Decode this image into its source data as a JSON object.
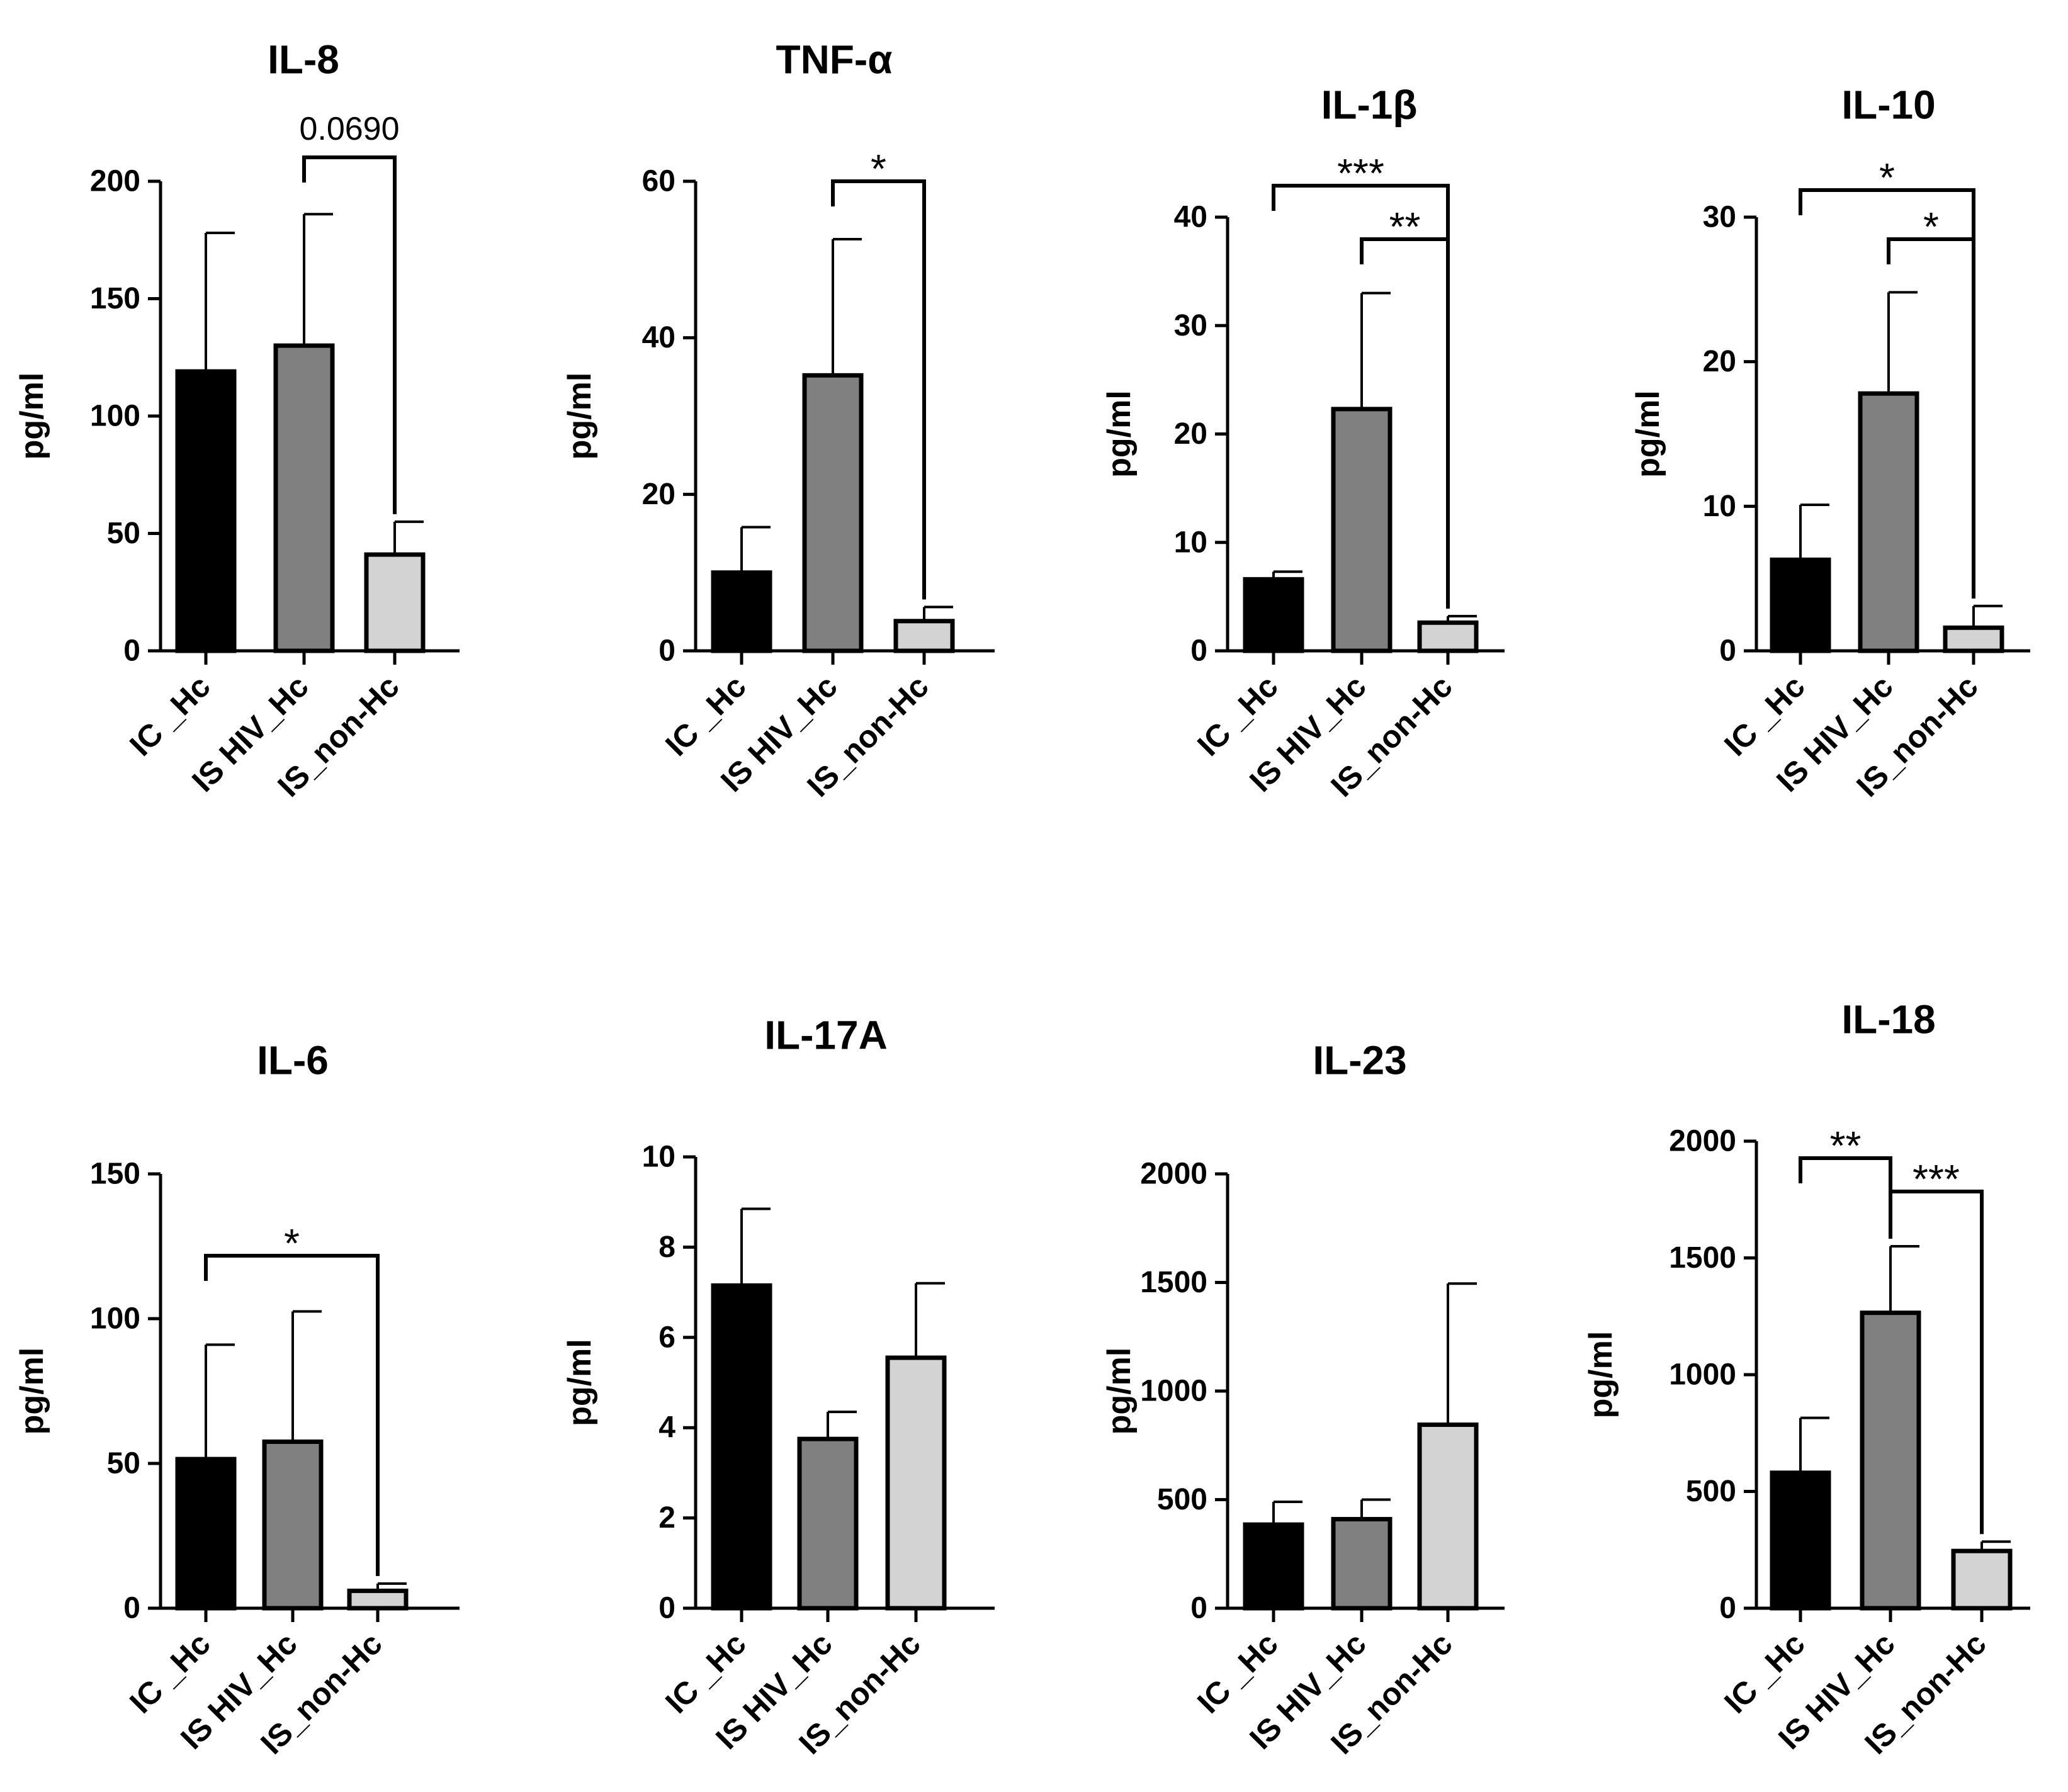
{
  "chart_data": [
    {
      "type": "bar",
      "title": "IL-8",
      "ylabel": "pg/ml",
      "categories": [
        "IC _Hc",
        "IS HIV_Hc",
        "IS_non-Hc"
      ],
      "values": [
        119,
        130,
        41
      ],
      "errors": [
        59,
        56,
        14
      ],
      "ylim": [
        0,
        200
      ],
      "yticks": [
        "0",
        "50",
        "100",
        "150",
        "200"
      ],
      "comparisons": [
        {
          "from": 1,
          "to": 2,
          "label": "0.0690"
        }
      ],
      "colors": [
        "#000000",
        "#808080",
        "#d3d3d3"
      ]
    },
    {
      "type": "bar",
      "title": "TNF-α",
      "ylabel": "pg/ml",
      "categories": [
        "IC _Hc",
        "IS HIV_Hc",
        "IS_non-Hc"
      ],
      "values": [
        10,
        35.2,
        3.8
      ],
      "errors": [
        5.8,
        17.4,
        1.8
      ],
      "ylim": [
        0,
        60
      ],
      "yticks": [
        "0",
        "20",
        "40",
        "60"
      ],
      "comparisons": [
        {
          "from": 1,
          "to": 2,
          "label": "*"
        }
      ],
      "colors": [
        "#000000",
        "#808080",
        "#d3d3d3"
      ]
    },
    {
      "type": "bar",
      "title": "IL-1β",
      "ylabel": "pg/ml",
      "categories": [
        "IC _Hc",
        "IS HIV_Hc",
        "IS_non-Hc"
      ],
      "values": [
        6.6,
        22.3,
        2.6
      ],
      "errors": [
        0.7,
        10.7,
        0.6
      ],
      "ylim": [
        0,
        40
      ],
      "yticks": [
        "0",
        "10",
        "20",
        "30",
        "40"
      ],
      "comparisons": [
        {
          "from": 0,
          "to": 2,
          "label": "***"
        },
        {
          "from": 1,
          "to": 2,
          "label": "**"
        }
      ],
      "colors": [
        "#000000",
        "#808080",
        "#d3d3d3"
      ]
    },
    {
      "type": "bar",
      "title": "IL-10",
      "ylabel": "pg/ml",
      "categories": [
        "IC _Hc",
        "IS HIV_Hc",
        "IS_non-Hc"
      ],
      "values": [
        6.3,
        17.8,
        1.6
      ],
      "errors": [
        3.8,
        7,
        1.5
      ],
      "ylim": [
        0,
        30
      ],
      "yticks": [
        "0",
        "10",
        "20",
        "30"
      ],
      "comparisons": [
        {
          "from": 0,
          "to": 2,
          "label": "*"
        },
        {
          "from": 1,
          "to": 2,
          "label": "*"
        }
      ],
      "colors": [
        "#000000",
        "#808080",
        "#d3d3d3"
      ]
    },
    {
      "type": "bar",
      "title": "IL-6",
      "ylabel": "pg/ml",
      "categories": [
        "IC _Hc",
        "IS HIV_Hc",
        "IS_non-Hc"
      ],
      "values": [
        51.5,
        57.5,
        6
      ],
      "errors": [
        39.5,
        45,
        2.5
      ],
      "ylim": [
        0,
        150
      ],
      "yticks": [
        "0",
        "50",
        "100",
        "150"
      ],
      "comparisons": [
        {
          "from": 0,
          "to": 2,
          "label": "*"
        }
      ],
      "colors": [
        "#000000",
        "#808080",
        "#d3d3d3"
      ]
    },
    {
      "type": "bar",
      "title": "IL-17A",
      "ylabel": "pg/ml",
      "categories": [
        "IC _Hc",
        "IS HIV_Hc",
        "IS_non-Hc"
      ],
      "values": [
        7.15,
        3.75,
        5.55
      ],
      "errors": [
        1.7,
        0.6,
        1.65
      ],
      "ylim": [
        0,
        10
      ],
      "yticks": [
        "0",
        "2",
        "4",
        "6",
        "8",
        "10"
      ],
      "comparisons": [],
      "colors": [
        "#000000",
        "#808080",
        "#d3d3d3"
      ]
    },
    {
      "type": "bar",
      "title": "IL-23",
      "ylabel": "pg/ml",
      "categories": [
        "IC _Hc",
        "IS HIV_Hc",
        "IS_non-Hc"
      ],
      "values": [
        385,
        410,
        845
      ],
      "errors": [
        105,
        90,
        650
      ],
      "ylim": [
        0,
        2000
      ],
      "yticks": [
        "0",
        "500",
        "1000",
        "1500",
        "2000"
      ],
      "comparisons": [],
      "colors": [
        "#000000",
        "#808080",
        "#d3d3d3"
      ]
    },
    {
      "type": "bar",
      "title": "IL-18",
      "ylabel": "pg/ml",
      "categories": [
        "IC _Hc",
        "IS HIV_Hc",
        "IS_non-Hc"
      ],
      "values": [
        580,
        1265,
        245
      ],
      "errors": [
        235,
        285,
        40
      ],
      "ylim": [
        0,
        2000
      ],
      "yticks": [
        "0",
        "500",
        "1000",
        "1500",
        "2000"
      ],
      "comparisons": [
        {
          "from": 0,
          "to": 1,
          "label": "**"
        },
        {
          "from": 1,
          "to": 2,
          "label": "***"
        }
      ],
      "colors": [
        "#000000",
        "#808080",
        "#d3d3d3"
      ]
    }
  ]
}
